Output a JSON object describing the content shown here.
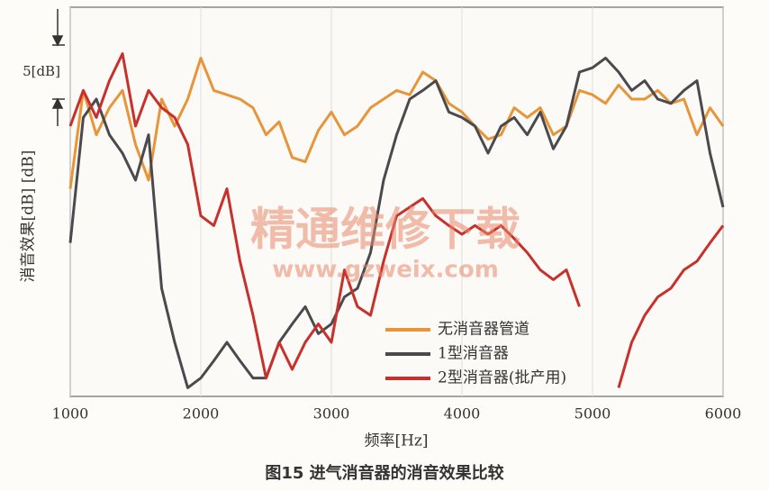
{
  "chart_data": {
    "type": "line",
    "caption": "图15 进气消音器的消音效果比较",
    "y_label": "消音效果[dB] [dB]",
    "x_label": "频率[Hz]",
    "scale_annotation": "5[dB]",
    "watermark": [
      "精通维修下载",
      "www.gzweix.com"
    ],
    "xlim": [
      1000,
      6000
    ],
    "ylim": [
      0,
      36
    ],
    "xticks": [
      1000,
      2000,
      3000,
      4000,
      5000,
      6000
    ],
    "x": [
      1000,
      1100,
      1200,
      1300,
      1400,
      1500,
      1600,
      1700,
      1800,
      1900,
      2000,
      2100,
      2200,
      2300,
      2400,
      2500,
      2600,
      2700,
      2800,
      2900,
      3000,
      3100,
      3200,
      3300,
      3400,
      3500,
      3600,
      3700,
      3800,
      3900,
      4000,
      4100,
      4200,
      4300,
      4400,
      4500,
      4600,
      4700,
      4800,
      4900,
      5000,
      5100,
      5200,
      5300,
      5400,
      5500,
      5600,
      5700,
      5800,
      5900,
      6000
    ],
    "series": [
      {
        "name": "无消音器管道",
        "color": "#e8953a",
        "values": [
          19.2,
          28.3,
          24.2,
          26.7,
          28.3,
          23.3,
          20,
          27.5,
          25,
          27.5,
          31.3,
          28.3,
          27.9,
          27.5,
          26.7,
          24.2,
          25.4,
          22.1,
          21.7,
          24.6,
          26.3,
          24.2,
          25,
          26.7,
          27.5,
          28.3,
          27.9,
          30,
          29.2,
          27.1,
          26.3,
          25,
          23.8,
          24.2,
          26.7,
          25.8,
          26.7,
          24.2,
          25,
          28.3,
          27.9,
          27.1,
          28.8,
          27.5,
          27.5,
          28.3,
          27.1,
          27.5,
          24.2,
          26.7,
          25
        ]
      },
      {
        "name": "1型消音器",
        "color": "#4a4a4e",
        "values": [
          14.2,
          25.8,
          27.5,
          24.2,
          22.5,
          20,
          24.2,
          10,
          5,
          0.8,
          1.7,
          3.3,
          5,
          3.3,
          1.7,
          1.7,
          5,
          6.7,
          8.3,
          5.8,
          6.7,
          9.2,
          10,
          13.3,
          20,
          24.2,
          27.5,
          28.3,
          29.2,
          26.3,
          25.8,
          25,
          22.5,
          25,
          25.8,
          24.2,
          26.3,
          22.9,
          25,
          30,
          30.4,
          31.3,
          30,
          28.3,
          29.2,
          27.5,
          27.1,
          28.3,
          29.2,
          22.5,
          17.5
        ]
      },
      {
        "name": "2型消音器(批产用)",
        "color": "#c8302c",
        "values": [
          25,
          28.3,
          25.8,
          29.2,
          31.7,
          25,
          28.3,
          26.7,
          25.8,
          23.3,
          16.7,
          15.8,
          19.2,
          12.5,
          7.5,
          1.7,
          5,
          2.5,
          5,
          6.7,
          5,
          11.7,
          8.3,
          7.5,
          12.5,
          16.7,
          17.5,
          18.3,
          16.7,
          15.8,
          15,
          15.8,
          15,
          15.8,
          14.6,
          13.3,
          11.7,
          10.8,
          11.7,
          8.3,
          null,
          null,
          0.8,
          5,
          7.5,
          9.2,
          10,
          11.7,
          12.5,
          14.2,
          15.8
        ]
      }
    ]
  }
}
